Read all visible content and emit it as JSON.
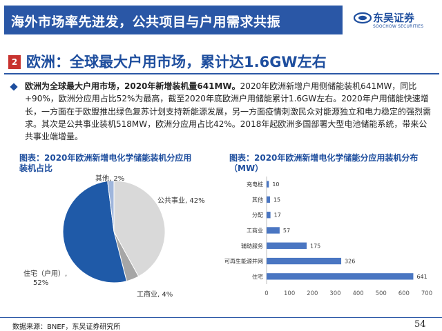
{
  "header": {
    "title": "海外市场率先进发，公共项目与户用需求共振",
    "logo_name": "东吴证券",
    "logo_sub": "SOOCHOW SECURITIES"
  },
  "section": {
    "number": "2",
    "title": "欧洲：全球最大户用市场，累计达1.6GW左右"
  },
  "paragraph": {
    "lead": "欧洲为全球最大户用市场，2020年新增装机量641MW。",
    "body": "2020年欧洲新增户用侧储能装机641MW，同比+90%，欧洲分应用占比52%为最高，截至2020年底欧洲户用储能累计1.6GW左右。2020年户用储能快速增长，一方面在于欧盟推出绿色复苏计划支持新能源发展，另一方面疫情刺激民众对能源独立和电力稳定的强烈需求。其次是公共事业装机518MW，欧洲分应用占比42%。2018年起欧洲多国部署大型电池储能系统，带来公共事业端增量。"
  },
  "figures": {
    "left_title": "图表：2020年欧洲新增电化学储能装机分应用装机占比",
    "right_title": "图表：2020年欧洲新增电化学储能分应用装机分布（MW）"
  },
  "chart_data": [
    {
      "type": "pie",
      "categories": [
        "公共事业",
        "工商业",
        "住宅（户用）",
        "其他"
      ],
      "values": [
        42,
        4,
        52,
        2
      ],
      "labels": [
        "公共事业, 42%",
        "工商业, 4%",
        "住宅（户用）,",
        "其他, 2%"
      ],
      "label_extra": "52%",
      "colors": [
        "#d9d9d9",
        "#a6a6a6",
        "#1f5aa8",
        "#9fb6dc"
      ]
    },
    {
      "type": "bar",
      "orientation": "horizontal",
      "categories": [
        "充电桩",
        "其他",
        "分配",
        "工商业",
        "辅助服务",
        "可再生能源并网",
        "住宅"
      ],
      "values": [
        10,
        15,
        17,
        57,
        175,
        326,
        641
      ],
      "xlim": [
        0,
        700
      ],
      "xticks": [
        0,
        100,
        200,
        300,
        400,
        500,
        600,
        700
      ],
      "color": "#4a76c2"
    }
  ],
  "footer": {
    "source": "数据来源：BNEF，东吴证券研究所",
    "page": "54"
  }
}
